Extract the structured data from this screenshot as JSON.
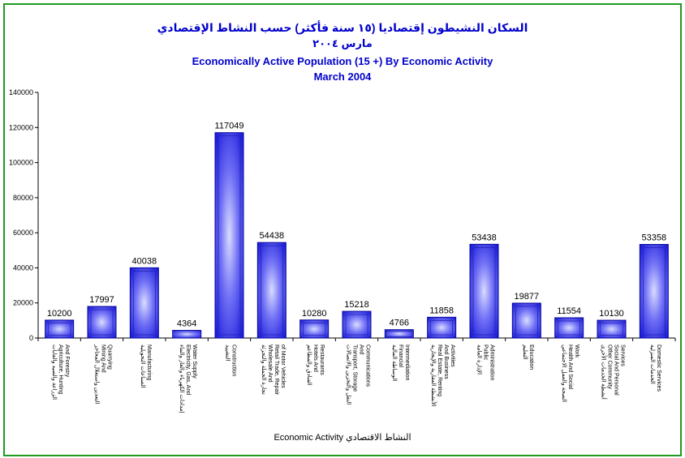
{
  "chart_data": {
    "type": "bar",
    "title_ar": "السكان النشيطون إقتصاديا (١٥ سنة فأكثر) حسب النشاط الإقتصادي",
    "subtitle_ar": "مارس ٢٠٠٤",
    "title": "Economically Active Population (15 +) By Economic Activity",
    "subtitle": "March 2004",
    "xlabel": "Economic Activity النشاط الاقتصادي",
    "ylabel": "",
    "ylim": [
      0,
      140000
    ],
    "yticks": [
      0,
      20000,
      40000,
      60000,
      80000,
      100000,
      120000,
      140000
    ],
    "ytick_labels": [
      "0",
      "20000",
      "40000",
      "60000",
      "80000",
      "100000",
      "120000",
      "140000"
    ],
    "grid": false,
    "bar_color": "#1f1fe6",
    "categories": [
      {
        "ar": "الزراعة والصيد والغابات",
        "en": [
          "Agriculture, Hunting",
          "And Forestry"
        ]
      },
      {
        "ar": "التعدين واستغلال المحاجر",
        "en": [
          "Mining And",
          "Quarrying"
        ]
      },
      {
        "ar": "الصناعات التحويلية",
        "en": [
          "Manufacturing"
        ]
      },
      {
        "ar": "إمدادات الكهرباء والغاز والماء",
        "en": [
          "Electricity, Gas, And",
          "Water Supply"
        ]
      },
      {
        "ar": "التشييد",
        "en": [
          "Construction"
        ]
      },
      {
        "ar": "تجارة الجملة والتجزئة",
        "en": [
          "Wholesale And",
          "Retail Trade, Repair",
          "of Motor Vehicles"
        ]
      },
      {
        "ar": "الفنادق والمطاعم",
        "en": [
          "Hotels And",
          "Restaurants"
        ]
      },
      {
        "ar": "النقل والتخزين والاتصالات",
        "en": [
          "Transport, Storage",
          "And",
          "Communications"
        ]
      },
      {
        "ar": "الوساطة المالية",
        "en": [
          "Financial",
          "Intermediation"
        ]
      },
      {
        "ar": "الأنشطة العقارية والإيجارية",
        "en": [
          "Real Estate, Renting",
          "And Business",
          "Activities"
        ]
      },
      {
        "ar": "الإدارة العامة",
        "en": [
          "Public",
          "Administration"
        ]
      },
      {
        "ar": "التعليم",
        "en": [
          "Education"
        ]
      },
      {
        "ar": "الصحة والعمل الاجتماعي",
        "en": [
          "Health And Social",
          "Work"
        ]
      },
      {
        "ar": "أنشطة الخدمات الأخرى",
        "en": [
          "Other Community",
          "Social And Personal",
          "Services"
        ]
      },
      {
        "ar": "الخدمات المنزلية",
        "en": [
          "Domestic Services"
        ]
      }
    ],
    "values": [
      10200,
      17997,
      40038,
      4364,
      117049,
      54438,
      10280,
      15218,
      4766,
      11858,
      53438,
      19877,
      11554,
      10130,
      53358
    ]
  }
}
